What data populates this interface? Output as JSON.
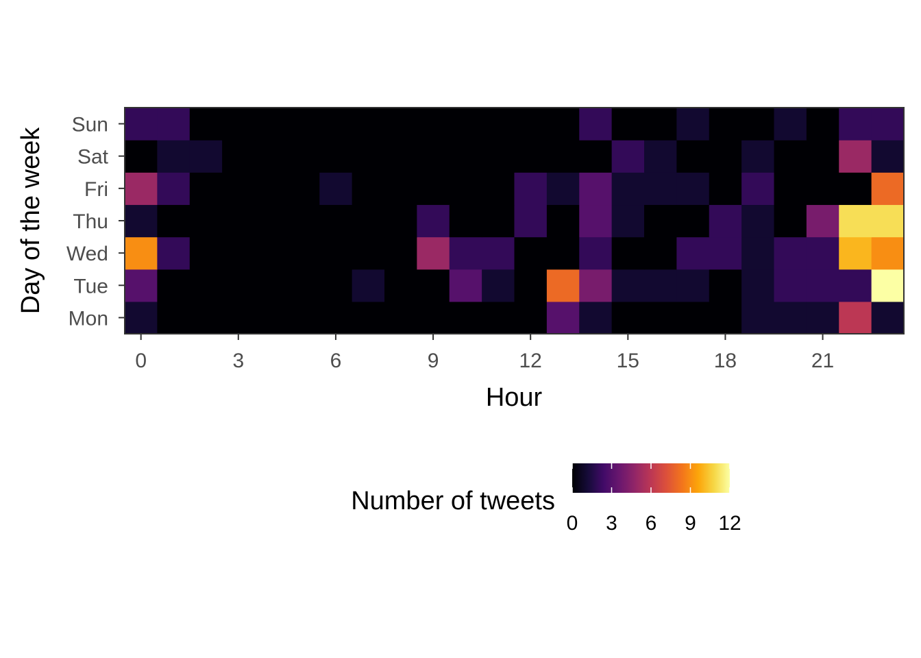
{
  "chart_data": {
    "type": "heatmap",
    "xlabel": "Hour",
    "ylabel": "Day of the week",
    "x_categories": [
      0,
      1,
      2,
      3,
      4,
      5,
      6,
      7,
      8,
      9,
      10,
      11,
      12,
      13,
      14,
      15,
      16,
      17,
      18,
      19,
      20,
      21,
      22,
      23
    ],
    "x_tick_labels": [
      "0",
      "3",
      "6",
      "9",
      "12",
      "15",
      "18",
      "21"
    ],
    "x_tick_values": [
      0,
      3,
      6,
      9,
      12,
      15,
      18,
      21
    ],
    "y_categories": [
      "Mon",
      "Tue",
      "Wed",
      "Thu",
      "Fri",
      "Sat",
      "Sun"
    ],
    "values": [
      [
        1,
        0,
        0,
        0,
        0,
        0,
        0,
        0,
        0,
        0,
        0,
        0,
        0,
        3,
        1,
        0,
        0,
        0,
        0,
        1,
        1,
        1,
        6,
        1
      ],
      [
        3,
        0,
        0,
        0,
        0,
        0,
        0,
        1,
        0,
        0,
        3,
        1,
        0,
        8,
        4,
        1,
        1,
        1,
        0,
        1,
        2,
        2,
        2,
        12
      ],
      [
        9,
        2,
        0,
        0,
        0,
        0,
        0,
        0,
        0,
        5,
        2,
        2,
        0,
        0,
        2,
        0,
        0,
        2,
        2,
        1,
        2,
        2,
        10,
        9
      ],
      [
        1,
        0,
        0,
        0,
        0,
        0,
        0,
        0,
        0,
        2,
        0,
        0,
        2,
        0,
        3,
        1,
        0,
        0,
        2,
        1,
        0,
        4,
        11,
        11
      ],
      [
        5,
        2,
        0,
        0,
        0,
        0,
        1,
        0,
        0,
        0,
        0,
        0,
        2,
        1,
        3,
        1,
        1,
        1,
        0,
        2,
        0,
        0,
        0,
        8
      ],
      [
        0,
        1,
        1,
        0,
        0,
        0,
        0,
        0,
        0,
        0,
        0,
        0,
        0,
        0,
        0,
        2,
        1,
        0,
        0,
        1,
        0,
        0,
        5,
        1
      ],
      [
        2,
        2,
        0,
        0,
        0,
        0,
        0,
        0,
        0,
        0,
        0,
        0,
        0,
        0,
        2,
        0,
        0,
        1,
        0,
        0,
        1,
        0,
        2,
        2
      ]
    ],
    "color_scale": "inferno",
    "value_range": [
      0,
      12
    ],
    "legend": {
      "title": "Number of tweets",
      "tick_values": [
        0,
        3,
        6,
        9,
        12
      ],
      "tick_labels": [
        "0",
        "3",
        "6",
        "9",
        "12"
      ],
      "position": "bottom"
    }
  }
}
